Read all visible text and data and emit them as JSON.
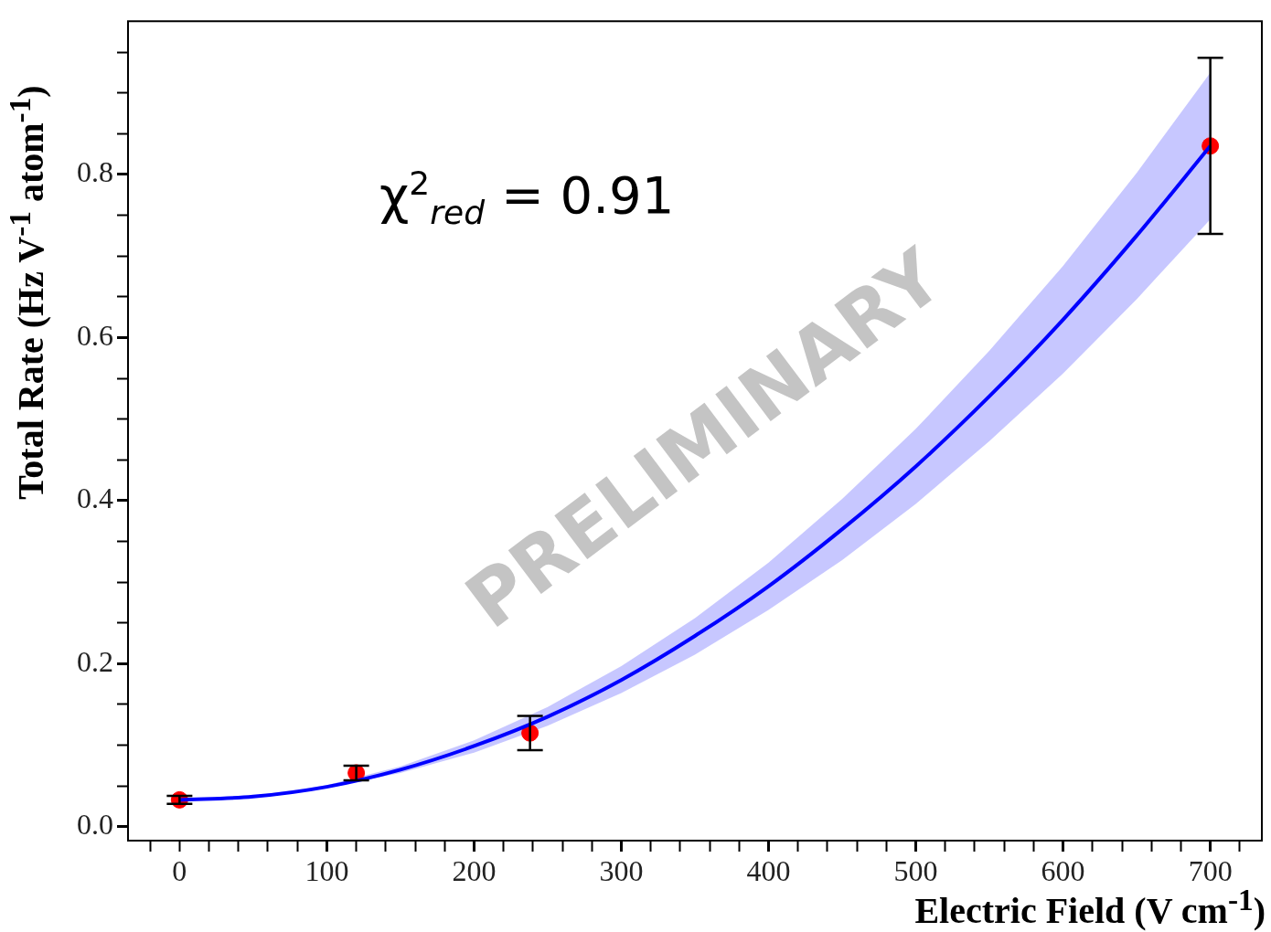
{
  "chart_data": {
    "type": "scatter",
    "xlabel": "Electric Field (V cm$^{-1}$)",
    "ylabel": "Total Rate (Hz V$^{-1}$ atom$^{-1}$)",
    "annotations": [
      "χ$^{2}$$_{red}$ = 0.91",
      "PRELIMINARY"
    ],
    "xlim": [
      -35,
      735
    ],
    "xticks": [
      {
        "value": -20,
        "label": null
      },
      0,
      {
        "value": 20,
        "label": null
      },
      {
        "value": 40,
        "label": null
      },
      {
        "value": 60,
        "label": null
      },
      {
        "value": 80,
        "label": null
      },
      100,
      {
        "value": 120,
        "label": null
      },
      {
        "value": 140,
        "label": null
      },
      {
        "value": 160,
        "label": null
      },
      {
        "value": 180,
        "label": null
      },
      200,
      {
        "value": 220,
        "label": null
      },
      {
        "value": 240,
        "label": null
      },
      {
        "value": 260,
        "label": null
      },
      {
        "value": 280,
        "label": null
      },
      300,
      {
        "value": 320,
        "label": null
      },
      {
        "value": 340,
        "label": null
      },
      {
        "value": 360,
        "label": null
      },
      {
        "value": 380,
        "label": null
      },
      400,
      {
        "value": 420,
        "label": null
      },
      {
        "value": 440,
        "label": null
      },
      {
        "value": 460,
        "label": null
      },
      {
        "value": 480,
        "label": null
      },
      500,
      {
        "value": 520,
        "label": null
      },
      {
        "value": 540,
        "label": null
      },
      {
        "value": 560,
        "label": null
      },
      {
        "value": 580,
        "label": null
      },
      600,
      {
        "value": 620,
        "label": null
      },
      {
        "value": 640,
        "label": null
      },
      {
        "value": 660,
        "label": null
      },
      {
        "value": 680,
        "label": null
      },
      700,
      {
        "value": 720,
        "label": null
      }
    ],
    "ylim": [
      -0.017,
      0.988
    ],
    "yticks": [
      {
        "value": 0,
        "label": "0.0"
      },
      {
        "value": 0.05,
        "label": null
      },
      {
        "value": 0.1,
        "label": null
      },
      {
        "value": 0.15,
        "label": null
      },
      0.2,
      {
        "value": 0.25,
        "label": null
      },
      {
        "value": 0.3,
        "label": null
      },
      {
        "value": 0.35,
        "label": null
      },
      0.4,
      {
        "value": 0.45,
        "label": null
      },
      {
        "value": 0.5,
        "label": null
      },
      {
        "value": 0.55,
        "label": null
      },
      0.6,
      {
        "value": 0.65,
        "label": null
      },
      {
        "value": 0.7,
        "label": null
      },
      {
        "value": 0.75,
        "label": null
      },
      0.8,
      {
        "value": 0.85,
        "label": null
      },
      {
        "value": 0.9,
        "label": null
      },
      {
        "value": 0.95,
        "label": null
      }
    ],
    "series": [
      {
        "type": "line",
        "color": "#0000ff",
        "marker": "none",
        "x": [
          0,
          50,
          100,
          150,
          200,
          250,
          300,
          350,
          400,
          450,
          500,
          550,
          600,
          650,
          700
        ],
        "values": [
          0.033,
          0.037,
          0.049,
          0.07,
          0.099,
          0.135,
          0.18,
          0.234,
          0.295,
          0.365,
          0.442,
          0.528,
          0.622,
          0.725,
          0.835
        ],
        "lower": [
          0.033,
          0.037,
          0.048,
          0.066,
          0.091,
          0.124,
          0.164,
          0.211,
          0.266,
          0.327,
          0.396,
          0.473,
          0.556,
          0.647,
          0.745
        ],
        "upper": [
          0.033,
          0.038,
          0.051,
          0.074,
          0.106,
          0.147,
          0.197,
          0.256,
          0.324,
          0.402,
          0.488,
          0.584,
          0.688,
          0.802,
          0.925
        ]
      },
      {
        "color": "#ff0000",
        "marker": "circle",
        "x": [
          0,
          120,
          238,
          700
        ],
        "values": [
          0.033,
          0.066,
          0.115,
          0.835
        ],
        "errors": [
          0.005,
          0.009,
          0.021,
          0.108
        ]
      }
    ]
  }
}
